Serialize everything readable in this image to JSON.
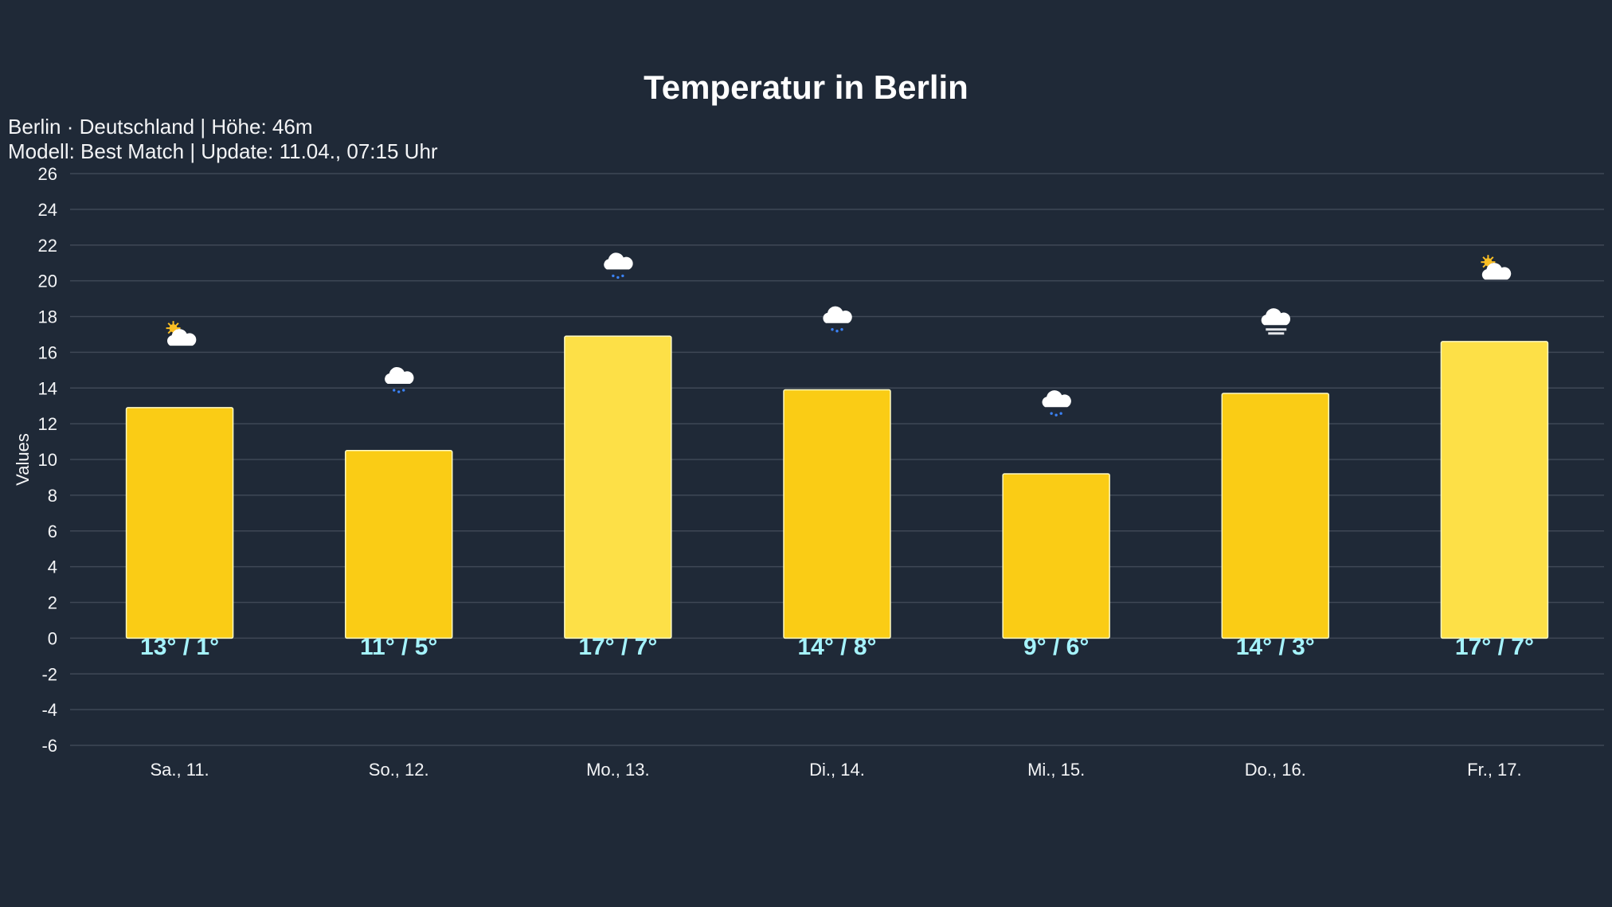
{
  "header": {
    "subtitle_line1": "Berlin · Deutschland | Höhe: 46m",
    "subtitle_line2": "Modell: Best Match | Update: 11.04., 07:15 Uhr"
  },
  "chart_data": {
    "type": "bar",
    "title": "Temperatur in Berlin",
    "xlabel": "",
    "ylabel": "Values",
    "ylim": [
      -6,
      26
    ],
    "yticks": [
      26,
      24,
      22,
      20,
      18,
      16,
      14,
      12,
      10,
      8,
      6,
      4,
      2,
      0,
      -2,
      -4,
      -6
    ],
    "grid": true,
    "categories": [
      "Sa., 11.",
      "So., 12.",
      "Mo., 13.",
      "Di., 14.",
      "Mi., 15.",
      "Do., 16.",
      "Fr., 17."
    ],
    "values": [
      12.9,
      10.5,
      16.9,
      13.9,
      9.2,
      13.7,
      16.6
    ],
    "data_labels": [
      "13° / 1°",
      "11° / 5°",
      "17° / 7°",
      "14° / 8°",
      "9° / 6°",
      "14° / 3°",
      "17° / 7°"
    ],
    "icons": [
      "partly-cloudy-icon",
      "drizzle-icon",
      "drizzle-icon",
      "drizzle-icon",
      "drizzle-icon",
      "fog-icon",
      "partly-cloudy-icon"
    ],
    "colors": {
      "bar": "#facc15",
      "bar_highlight": "#fde047",
      "label": "#a5f3fc",
      "background": "#1f2937",
      "grid": "#3f4856"
    },
    "highlighted": [
      false,
      false,
      true,
      false,
      false,
      false,
      true
    ]
  }
}
